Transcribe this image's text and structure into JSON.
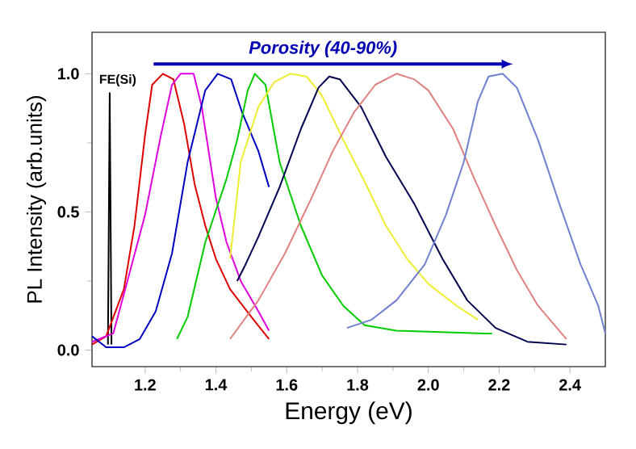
{
  "chart_data": {
    "type": "line",
    "xlabel": "Energy (eV)",
    "ylabel": "PL Intensity (arb.units)",
    "xlim": [
      1.05,
      2.5
    ],
    "ylim": [
      -0.06,
      1.15
    ],
    "xticks": [
      1.2,
      1.4,
      1.6,
      1.8,
      {
        "value": 2.0,
        "label": "2.0"
      },
      2.2,
      2.4
    ],
    "yticks": [
      {
        "value": 0,
        "label": "0.0"
      },
      0.5,
      {
        "value": 1,
        "label": "1.0"
      }
    ],
    "annotations": [
      "Porosity (40-90%)",
      {
        "text": "FE(Si)",
        "x": 1.1,
        "y": 0.93
      }
    ],
    "series": [
      {
        "color": "#000000",
        "x": [
          1.095,
          1.1,
          1.105
        ],
        "values": [
          0.02,
          0.93,
          0.02
        ]
      },
      {
        "color": "#e00000",
        "x": [
          1.05,
          1.09,
          1.14,
          1.17,
          1.2,
          1.22,
          1.25,
          1.28,
          1.31,
          1.34,
          1.37,
          1.4,
          1.44,
          1.5,
          1.55
        ],
        "values": [
          0.02,
          0.05,
          0.22,
          0.45,
          0.78,
          0.96,
          1.0,
          0.98,
          0.82,
          0.6,
          0.45,
          0.33,
          0.22,
          0.12,
          0.04
        ]
      },
      {
        "color": "#e000e0",
        "x": [
          1.05,
          1.11,
          1.15,
          1.2,
          1.245,
          1.276,
          1.3,
          1.337,
          1.36,
          1.4,
          1.43,
          1.47,
          1.52,
          1.55
        ],
        "values": [
          0.03,
          0.06,
          0.25,
          0.49,
          0.78,
          0.96,
          1.0,
          1.0,
          0.88,
          0.55,
          0.39,
          0.25,
          0.14,
          0.07
        ]
      },
      {
        "color": "#0000c0",
        "x": [
          1.05,
          1.09,
          1.14,
          1.185,
          1.23,
          1.276,
          1.32,
          1.37,
          1.405,
          1.443,
          1.474,
          1.52,
          1.55
        ],
        "values": [
          0.05,
          0.01,
          0.01,
          0.04,
          0.14,
          0.35,
          0.68,
          0.94,
          1.0,
          0.98,
          0.86,
          0.72,
          0.59
        ]
      },
      {
        "color": "#00cc00",
        "x": [
          1.29,
          1.32,
          1.37,
          1.43,
          1.46,
          1.49,
          1.51,
          1.54,
          1.58,
          1.64,
          1.7,
          1.76,
          1.82,
          1.91,
          2.16,
          2.18
        ],
        "values": [
          0.04,
          0.12,
          0.39,
          0.62,
          0.76,
          0.94,
          1.0,
          0.96,
          0.68,
          0.45,
          0.27,
          0.16,
          0.09,
          0.07,
          0.06,
          0.06
        ]
      },
      {
        "color": "#eeee30",
        "x": [
          1.44,
          1.47,
          1.52,
          1.565,
          1.61,
          1.656,
          1.7,
          1.76,
          1.82,
          1.88,
          1.94,
          2.0,
          2.08,
          2.14
        ],
        "values": [
          0.33,
          0.68,
          0.88,
          0.97,
          1.0,
          0.99,
          0.92,
          0.76,
          0.61,
          0.45,
          0.33,
          0.24,
          0.16,
          0.11
        ]
      },
      {
        "color": "#000050",
        "x": [
          1.46,
          1.48,
          1.52,
          1.58,
          1.64,
          1.69,
          1.72,
          1.75,
          1.81,
          1.88,
          1.96,
          2.04,
          2.11,
          2.19,
          2.28,
          2.39
        ],
        "values": [
          0.25,
          0.3,
          0.41,
          0.59,
          0.8,
          0.95,
          0.99,
          0.98,
          0.88,
          0.7,
          0.53,
          0.33,
          0.18,
          0.08,
          0.03,
          0.02
        ]
      },
      {
        "color": "#e08080",
        "x": [
          1.44,
          1.52,
          1.595,
          1.67,
          1.73,
          1.79,
          1.85,
          1.91,
          1.96,
          2.0,
          2.07,
          2.13,
          2.19,
          2.25,
          2.31,
          2.39
        ],
        "values": [
          0.04,
          0.18,
          0.35,
          0.55,
          0.72,
          0.86,
          0.96,
          1.0,
          0.98,
          0.94,
          0.8,
          0.62,
          0.45,
          0.29,
          0.16,
          0.04
        ]
      },
      {
        "color": "#7080d0",
        "x": [
          1.77,
          1.84,
          1.91,
          1.99,
          2.05,
          2.1,
          2.14,
          2.17,
          2.21,
          2.25,
          2.31,
          2.37,
          2.43,
          2.48,
          2.5
        ],
        "values": [
          0.08,
          0.11,
          0.18,
          0.31,
          0.49,
          0.68,
          0.9,
          0.99,
          1.0,
          0.95,
          0.76,
          0.53,
          0.31,
          0.16,
          0.06
        ]
      }
    ]
  }
}
